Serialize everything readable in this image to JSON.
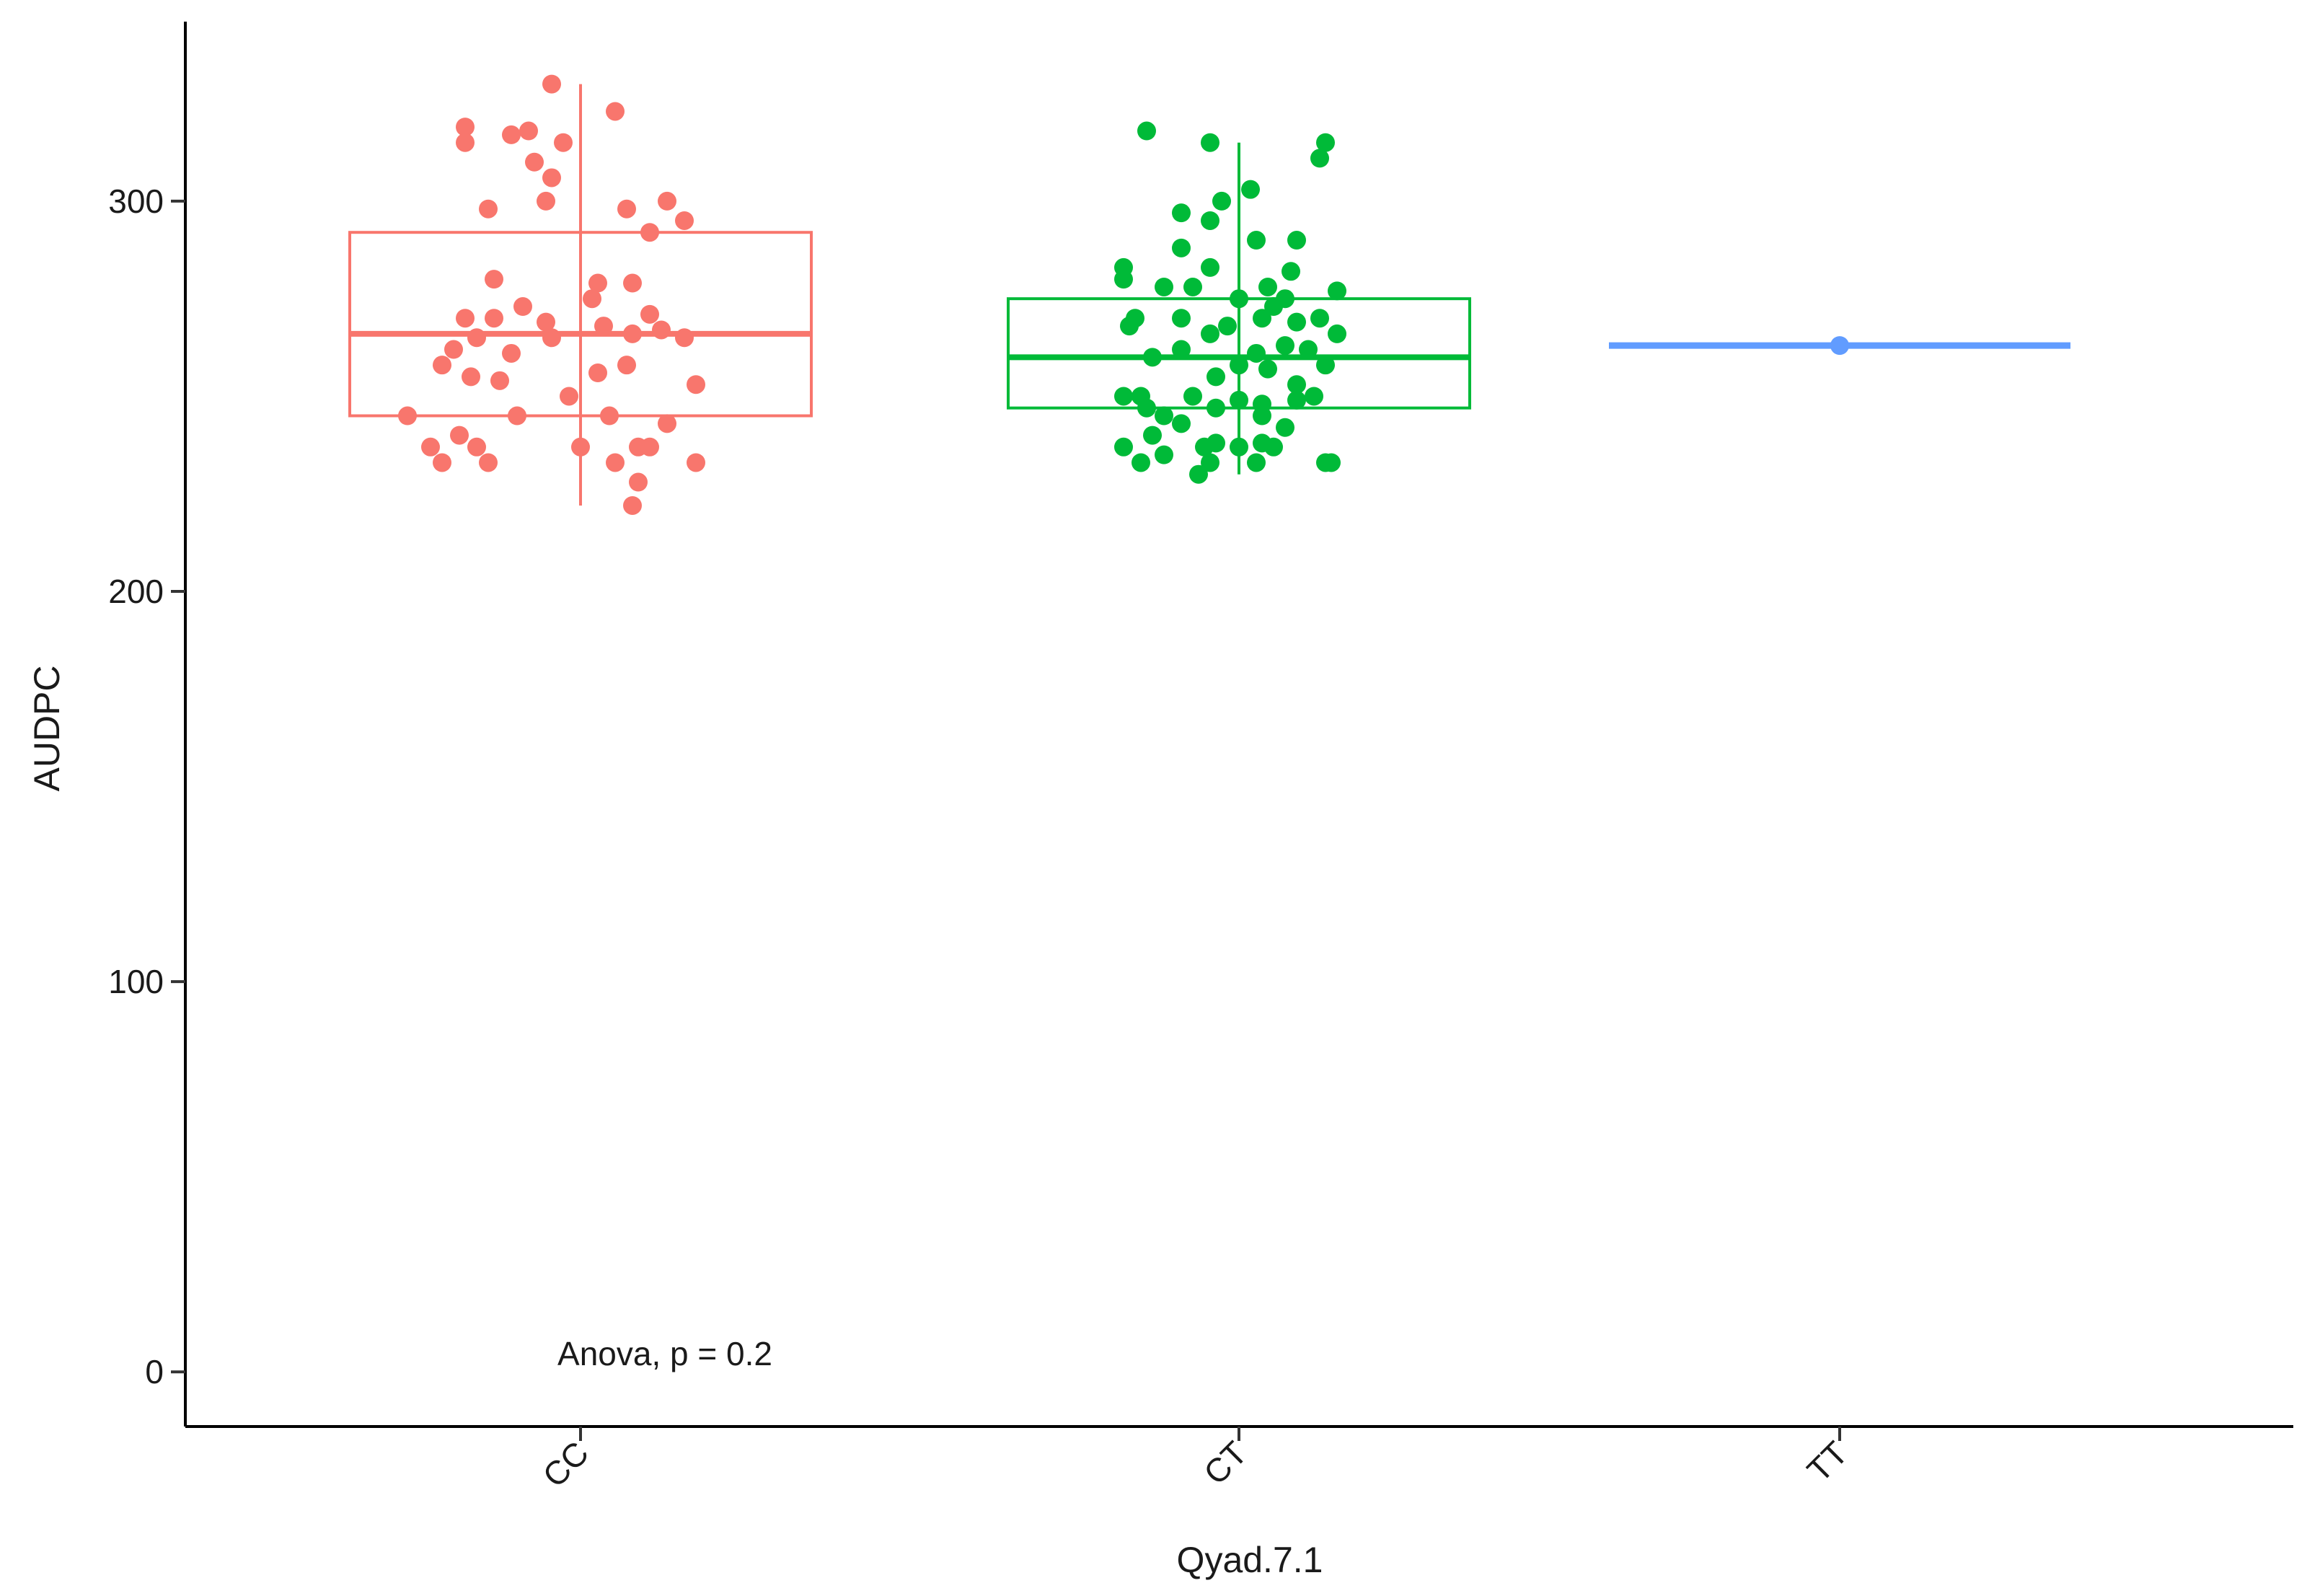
{
  "chart_data": {
    "type": "boxplot",
    "title": "",
    "xlabel": "Qyad.7.1",
    "ylabel": "AUDPC",
    "ylim": [
      -14,
      346
    ],
    "yticks": [
      0,
      100,
      200,
      300
    ],
    "grid": false,
    "legend": "none",
    "annotation": "Anova, p = 0.2",
    "categories": [
      "CC",
      "CT",
      "TT"
    ],
    "groups": [
      {
        "name": "CC",
        "color": "#F8766D",
        "q1": 245,
        "median": 266,
        "q3": 292,
        "whisker_low": 222,
        "whisker_high": 330,
        "points": [
          [
            -0.05,
            330
          ],
          [
            0.06,
            323
          ],
          [
            -0.09,
            318
          ],
          [
            -0.2,
            319
          ],
          [
            -0.12,
            317
          ],
          [
            -0.2,
            315
          ],
          [
            -0.03,
            315
          ],
          [
            -0.08,
            310
          ],
          [
            -0.05,
            306
          ],
          [
            0.15,
            300
          ],
          [
            0.08,
            298
          ],
          [
            -0.16,
            298
          ],
          [
            -0.06,
            300
          ],
          [
            0.18,
            295
          ],
          [
            0.12,
            292
          ],
          [
            -0.15,
            280
          ],
          [
            0.03,
            279
          ],
          [
            0.09,
            279
          ],
          [
            0.02,
            275
          ],
          [
            -0.1,
            273
          ],
          [
            -0.2,
            270
          ],
          [
            -0.15,
            270
          ],
          [
            0.12,
            271
          ],
          [
            -0.06,
            269
          ],
          [
            0.04,
            268
          ],
          [
            0.14,
            267
          ],
          [
            -0.18,
            265
          ],
          [
            -0.05,
            265
          ],
          [
            0.09,
            266
          ],
          [
            -0.22,
            262
          ],
          [
            -0.12,
            261
          ],
          [
            0.18,
            265
          ],
          [
            -0.24,
            258
          ],
          [
            -0.19,
            255
          ],
          [
            -0.14,
            254
          ],
          [
            0.03,
            256
          ],
          [
            0.08,
            258
          ],
          [
            0.2,
            253
          ],
          [
            -0.02,
            250
          ],
          [
            -0.3,
            245
          ],
          [
            0.05,
            245
          ],
          [
            -0.11,
            245
          ],
          [
            0.15,
            243
          ],
          [
            -0.21,
            240
          ],
          [
            -0.26,
            237
          ],
          [
            -0.18,
            237
          ],
          [
            0.0,
            237
          ],
          [
            0.1,
            237
          ],
          [
            0.12,
            237
          ],
          [
            -0.24,
            233
          ],
          [
            -0.16,
            233
          ],
          [
            0.06,
            233
          ],
          [
            0.2,
            233
          ],
          [
            0.1,
            228
          ],
          [
            0.09,
            222
          ]
        ]
      },
      {
        "name": "CT",
        "color": "#00BA38",
        "q1": 247,
        "median": 260,
        "q3": 275,
        "whisker_low": 230,
        "whisker_high": 315,
        "points": [
          [
            -0.16,
            318
          ],
          [
            -0.05,
            315
          ],
          [
            0.15,
            315
          ],
          [
            0.14,
            311
          ],
          [
            0.02,
            303
          ],
          [
            -0.03,
            300
          ],
          [
            -0.1,
            297
          ],
          [
            -0.05,
            295
          ],
          [
            0.1,
            290
          ],
          [
            0.03,
            290
          ],
          [
            -0.1,
            288
          ],
          [
            -0.05,
            283
          ],
          [
            0.09,
            282
          ],
          [
            -0.2,
            283
          ],
          [
            -0.2,
            280
          ],
          [
            -0.13,
            278
          ],
          [
            0.05,
            278
          ],
          [
            -0.08,
            278
          ],
          [
            0.17,
            277
          ],
          [
            0.0,
            275
          ],
          [
            0.08,
            275
          ],
          [
            0.06,
            273
          ],
          [
            -0.18,
            270
          ],
          [
            -0.1,
            270
          ],
          [
            0.14,
            270
          ],
          [
            0.04,
            270
          ],
          [
            0.1,
            269
          ],
          [
            -0.02,
            268
          ],
          [
            -0.19,
            268
          ],
          [
            0.17,
            266
          ],
          [
            -0.05,
            266
          ],
          [
            0.08,
            263
          ],
          [
            -0.1,
            262
          ],
          [
            0.03,
            261
          ],
          [
            0.12,
            262
          ],
          [
            -0.15,
            260
          ],
          [
            0.0,
            258
          ],
          [
            0.05,
            257
          ],
          [
            -0.04,
            255
          ],
          [
            0.1,
            253
          ],
          [
            0.15,
            258
          ],
          [
            -0.2,
            250
          ],
          [
            -0.17,
            250
          ],
          [
            -0.08,
            250
          ],
          [
            0.0,
            249
          ],
          [
            0.04,
            248
          ],
          [
            0.1,
            249
          ],
          [
            0.13,
            250
          ],
          [
            -0.16,
            247
          ],
          [
            -0.13,
            245
          ],
          [
            -0.04,
            247
          ],
          [
            0.04,
            245
          ],
          [
            0.08,
            242
          ],
          [
            -0.1,
            243
          ],
          [
            -0.15,
            240
          ],
          [
            0.0,
            237
          ],
          [
            0.06,
            237
          ],
          [
            -0.2,
            237
          ],
          [
            -0.17,
            233
          ],
          [
            -0.13,
            235
          ],
          [
            -0.07,
            230
          ],
          [
            0.03,
            233
          ],
          [
            0.15,
            233
          ],
          [
            0.16,
            233
          ],
          [
            -0.06,
            237
          ],
          [
            -0.04,
            238
          ],
          [
            -0.05,
            233
          ],
          [
            0.04,
            238
          ]
        ]
      },
      {
        "name": "TT",
        "color": "#619CFF",
        "q1": 263,
        "median": 263,
        "q3": 263,
        "whisker_low": 263,
        "whisker_high": 263,
        "points": [
          [
            0.0,
            263
          ]
        ]
      }
    ]
  }
}
